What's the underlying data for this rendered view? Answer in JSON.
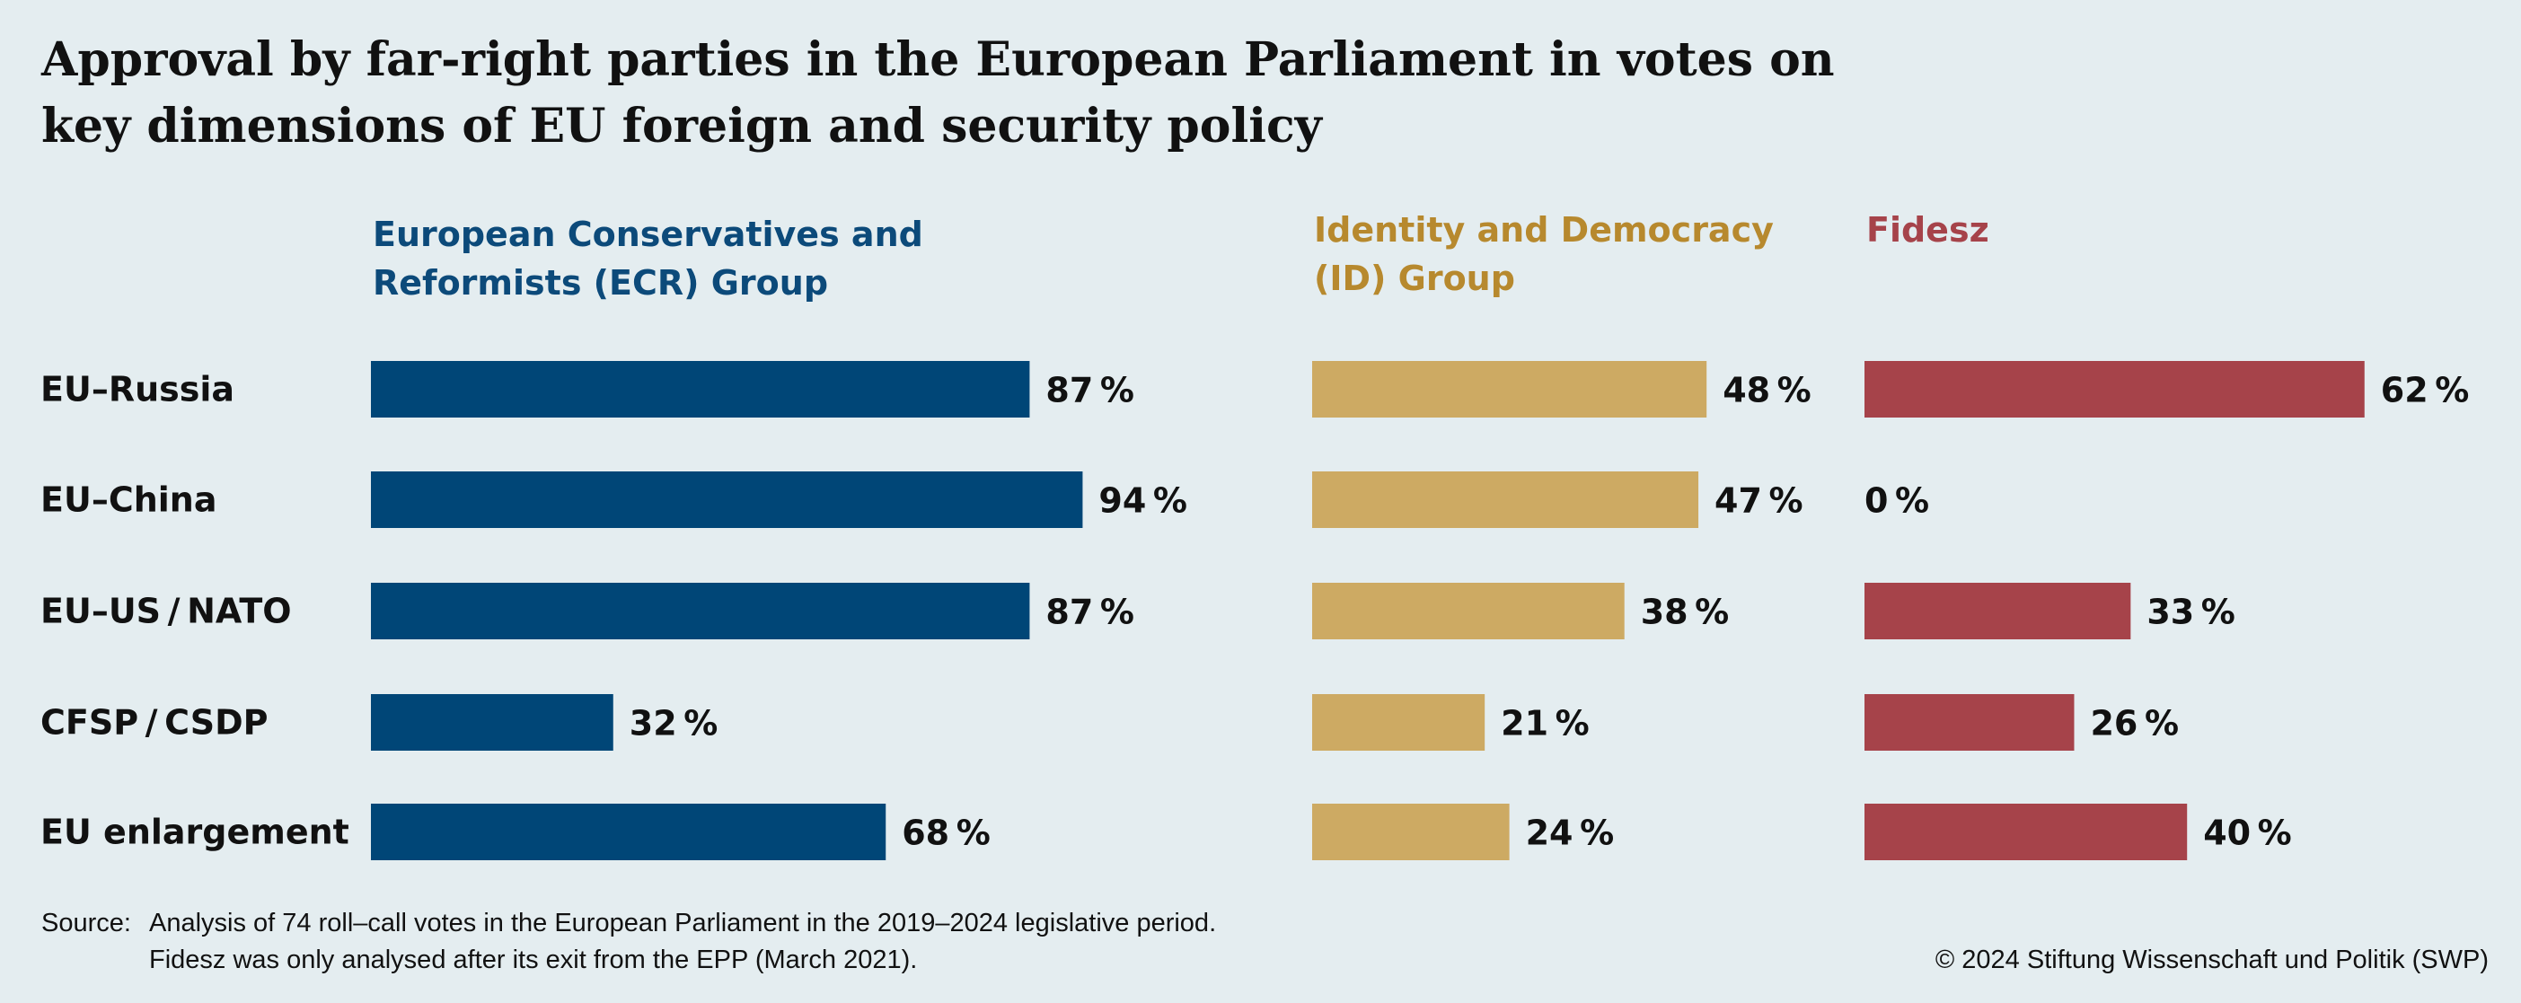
{
  "chart_data": {
    "type": "bar",
    "orientation": "horizontal",
    "title": "Approval by far-right parties in the European Parliament in votes on key dimensions of EU foreign and security policy",
    "title_lines": [
      "Approval by far-right parties in the European Parliament in votes on",
      "key dimensions of EU foreign and security policy"
    ],
    "categories": [
      "EU–Russia",
      "EU–China",
      "EU–US / NATO",
      "CFSP / CSDP",
      "EU enlargement"
    ],
    "value_unit": "%",
    "xlim": [
      0,
      100
    ],
    "grid": false,
    "series": [
      {
        "name": "European Conservatives and Reformists (ECR) Group",
        "name_lines": [
          "European Conservatives and",
          "Reformists (ECR) Group"
        ],
        "color": "#004677",
        "values": [
          87,
          94,
          87,
          32,
          68
        ],
        "labels": [
          "87 %",
          "94 %",
          "87 %",
          "32 %",
          "68 %"
        ]
      },
      {
        "name": "Identity and Democracy (ID) Group",
        "name_lines": [
          "Identity and Democracy",
          "(ID) Group"
        ],
        "color": "#cdaa63",
        "values": [
          48,
          47,
          38,
          21,
          24
        ],
        "labels": [
          "48 %",
          "47 %",
          "38 %",
          "21 %",
          "24 %"
        ]
      },
      {
        "name": "Fidesz",
        "name_lines": [
          "Fidesz"
        ],
        "color": "#a6434a",
        "values": [
          62,
          0,
          33,
          26,
          40
        ],
        "labels": [
          "62 %",
          "0 %",
          "33 %",
          "26 %",
          "40 %"
        ]
      }
    ],
    "series_name_colors": [
      "#0c4a7a",
      "#b7892e",
      "#a6434a"
    ]
  },
  "footer": {
    "source_label": "Source:",
    "source_line1": "Analysis of 74 roll–call votes in the European Parliament in the 2019–2024 legislative period.",
    "source_line2": "Fidesz was only analysed after its exit from the EPP (March 2021).",
    "copyright": "© 2024 Stiftung Wissenschaft und Politik (SWP)"
  }
}
